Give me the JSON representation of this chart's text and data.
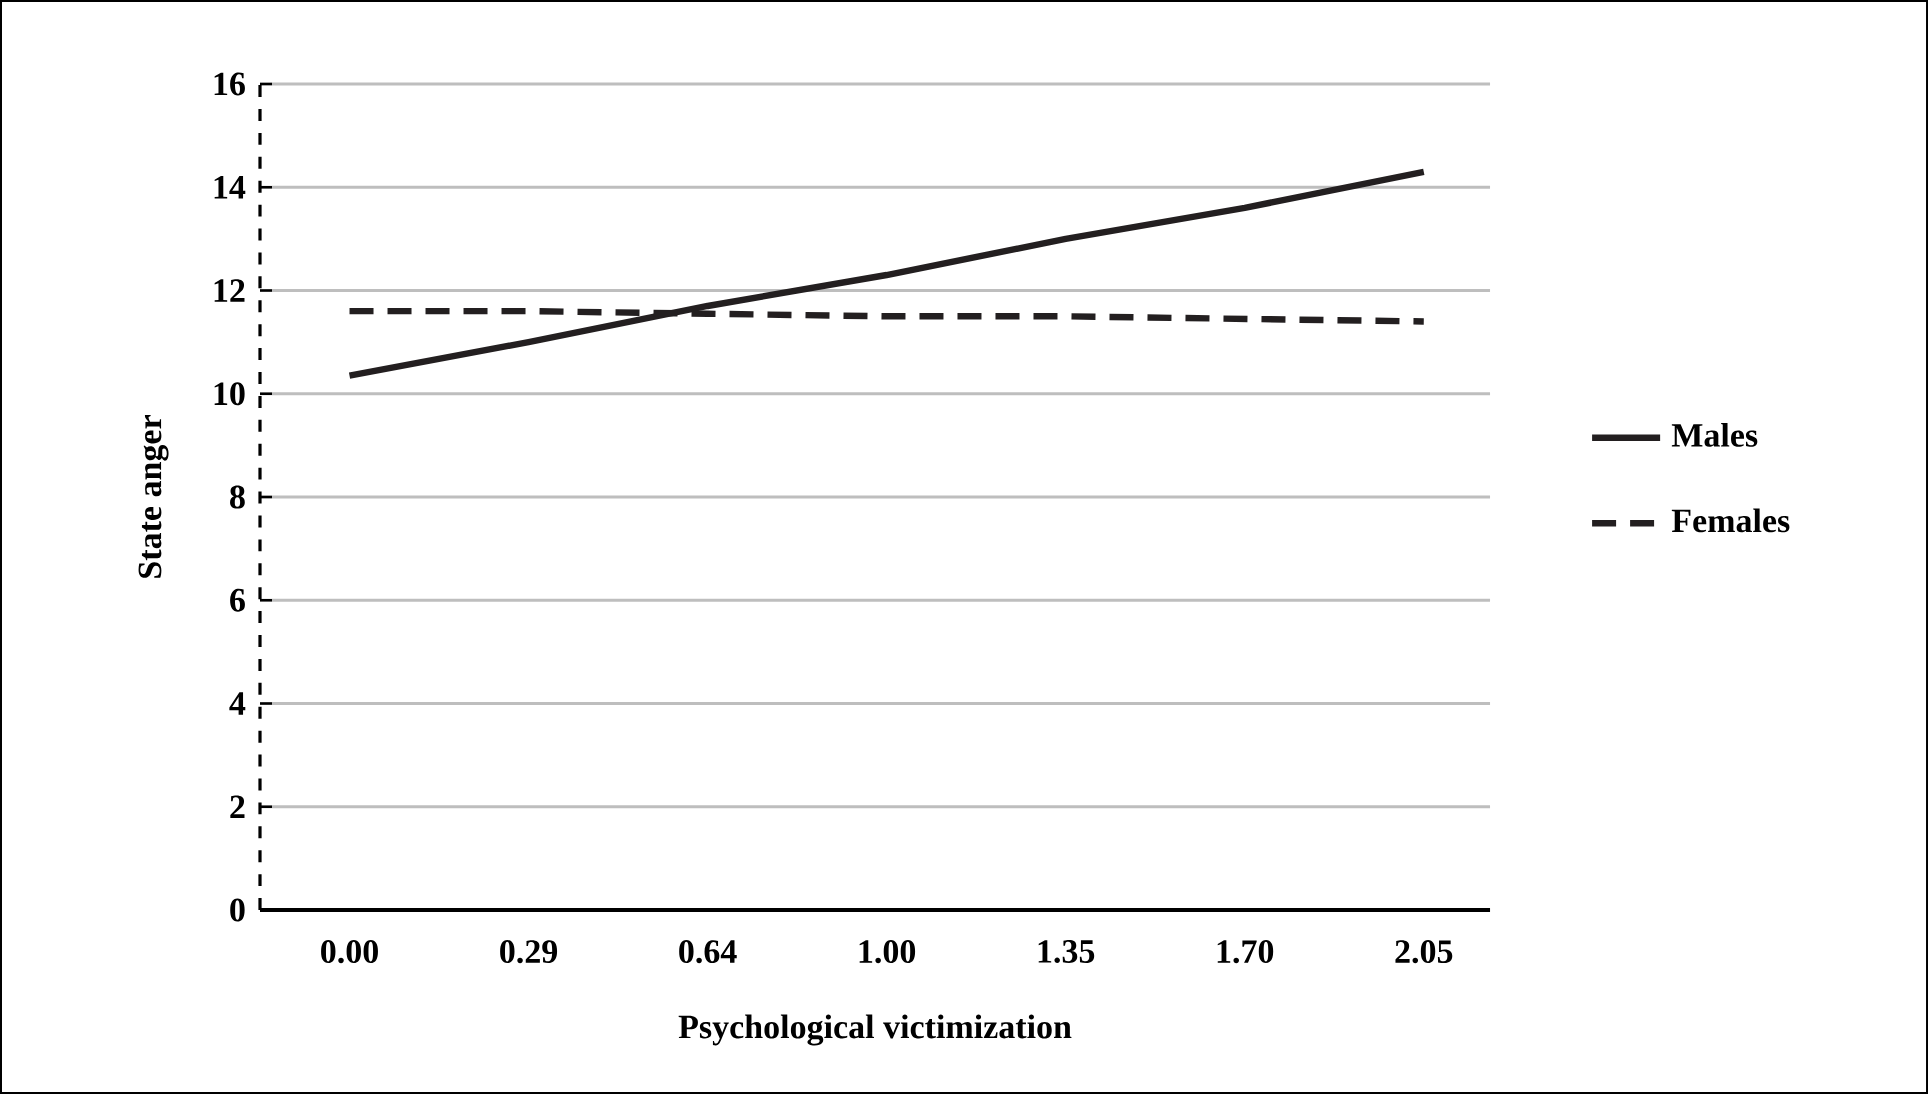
{
  "chart_data": {
    "type": "line",
    "xlabel": "Psychological victimization",
    "ylabel": "State anger",
    "categories": [
      "0.00",
      "0.29",
      "0.64",
      "1.00",
      "1.35",
      "1.70",
      "2.05"
    ],
    "series": [
      {
        "name": "Males",
        "color": "#231f20",
        "line_style": "solid",
        "values": [
          10.35,
          11.0,
          11.7,
          12.3,
          13.0,
          13.6,
          14.3
        ]
      },
      {
        "name": "Females",
        "color": "#231f20",
        "line_style": "dashed",
        "values": [
          11.6,
          11.6,
          11.55,
          11.5,
          11.5,
          11.45,
          11.4
        ]
      }
    ],
    "ylim": [
      0,
      16
    ],
    "yticks": [
      0,
      2,
      4,
      6,
      8,
      10,
      12,
      14,
      16
    ],
    "grid": "y",
    "legend": "right",
    "marker": "none"
  }
}
